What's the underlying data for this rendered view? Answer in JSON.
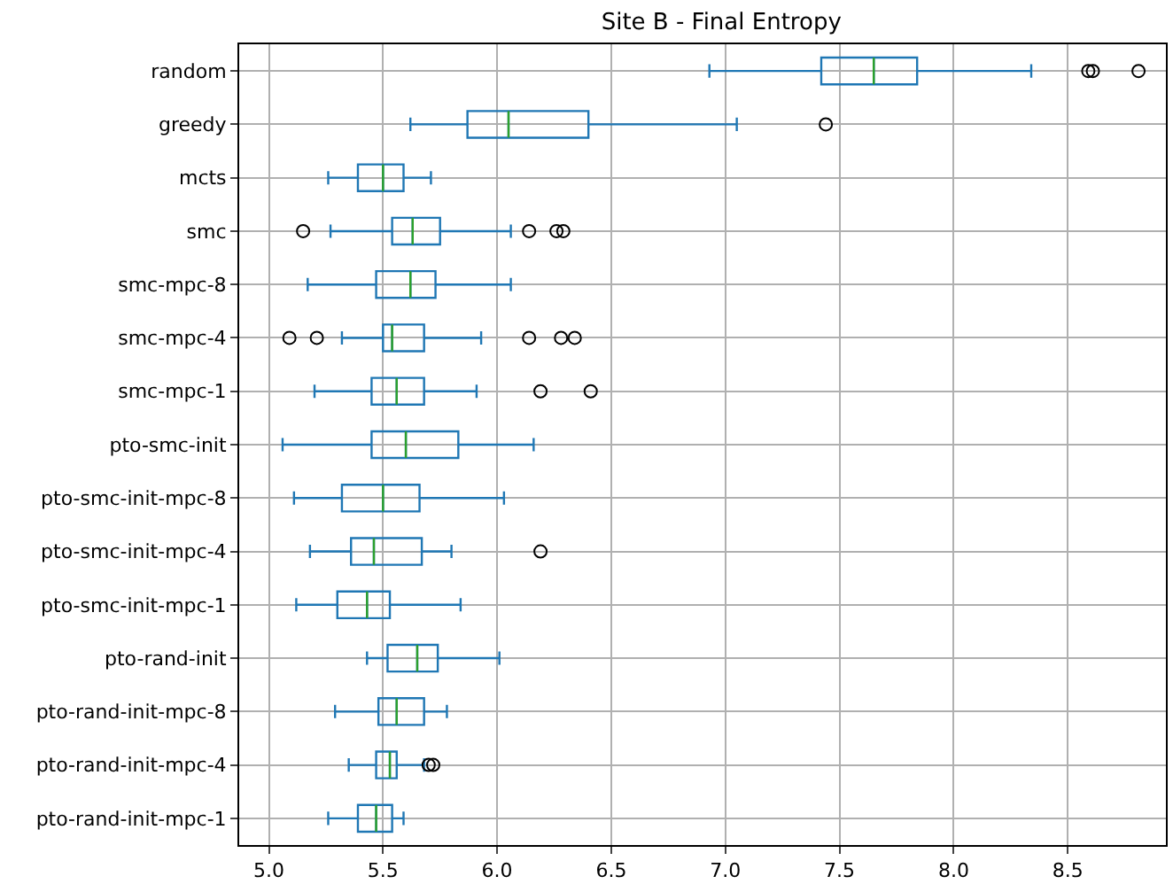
{
  "chart_data": {
    "type": "box",
    "orientation": "horizontal",
    "title": "Site B - Final Entropy",
    "grid": true,
    "categories": [
      "random",
      "greedy",
      "mcts",
      "smc",
      "smc-mpc-8",
      "smc-mpc-4",
      "smc-mpc-1",
      "pto-smc-init",
      "pto-smc-init-mpc-8",
      "pto-smc-init-mpc-4",
      "pto-smc-init-mpc-1",
      "pto-rand-init",
      "pto-rand-init-mpc-8",
      "pto-rand-init-mpc-4",
      "pto-rand-init-mpc-1"
    ],
    "xlim": [
      4.87,
      8.93
    ],
    "xticks": [
      {
        "value": 5,
        "label": "5.0"
      },
      5.5,
      {
        "value": 6,
        "label": "6.0"
      },
      6.5,
      {
        "value": 7,
        "label": "7.0"
      },
      7.5,
      {
        "value": 8,
        "label": "8.0"
      },
      8.5
    ],
    "boxes": [
      {
        "low": 6.93,
        "q1": 7.42,
        "median": 7.65,
        "q3": 7.84,
        "high": 8.34,
        "outliers": [
          8.59,
          8.61,
          8.81
        ]
      },
      {
        "low": 5.62,
        "q1": 5.87,
        "median": 6.05,
        "q3": 6.4,
        "high": 7.05,
        "outliers": [
          7.44
        ]
      },
      {
        "low": 5.26,
        "q1": 5.39,
        "median": 5.5,
        "q3": 5.59,
        "high": 5.71
      },
      {
        "low": 5.27,
        "q1": 5.54,
        "median": 5.63,
        "q3": 5.75,
        "high": 6.06,
        "outliers": [
          5.15,
          6.14,
          6.26,
          6.29
        ]
      },
      {
        "low": 5.17,
        "q1": 5.47,
        "median": 5.62,
        "q3": 5.73,
        "high": 6.06
      },
      {
        "low": 5.32,
        "q1": 5.5,
        "median": 5.54,
        "q3": 5.68,
        "high": 5.93,
        "outliers": [
          5.09,
          5.21,
          6.14,
          6.28,
          6.34
        ]
      },
      {
        "low": 5.2,
        "q1": 5.45,
        "median": 5.56,
        "q3": 5.68,
        "high": 5.91,
        "outliers": [
          6.19,
          6.41
        ]
      },
      {
        "low": 5.06,
        "q1": 5.45,
        "median": 5.6,
        "q3": 5.83,
        "high": 6.16
      },
      {
        "low": 5.11,
        "q1": 5.32,
        "median": 5.5,
        "q3": 5.66,
        "high": 6.03
      },
      {
        "low": 5.18,
        "q1": 5.36,
        "median": 5.46,
        "q3": 5.67,
        "high": 5.8,
        "outliers": [
          6.19
        ]
      },
      {
        "low": 5.12,
        "q1": 5.3,
        "median": 5.43,
        "q3": 5.53,
        "high": 5.84
      },
      {
        "low": 5.43,
        "q1": 5.52,
        "median": 5.65,
        "q3": 5.74,
        "high": 6.01
      },
      {
        "low": 5.29,
        "q1": 5.48,
        "median": 5.56,
        "q3": 5.68,
        "high": 5.78
      },
      {
        "low": 5.35,
        "q1": 5.47,
        "median": 5.53,
        "q3": 5.56,
        "high": 5.68,
        "outliers": [
          5.7,
          5.72
        ]
      },
      {
        "low": 5.26,
        "q1": 5.39,
        "median": 5.47,
        "q3": 5.54,
        "high": 5.59
      }
    ]
  }
}
